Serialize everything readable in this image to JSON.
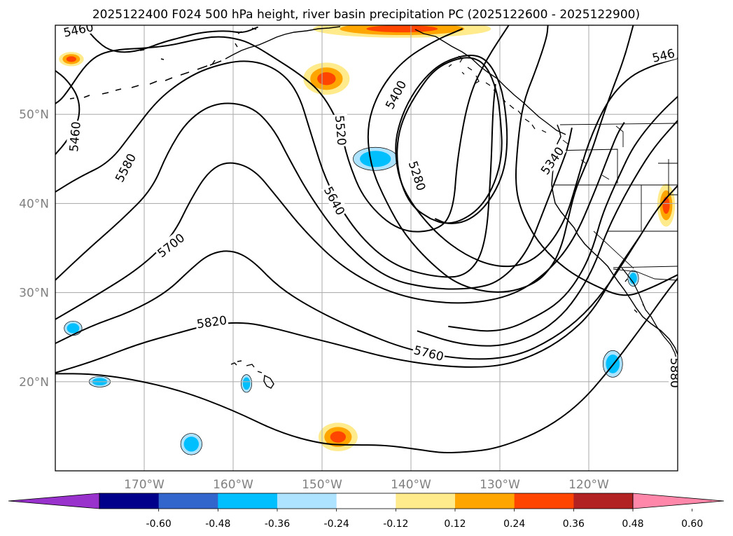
{
  "title": "2025122400 F024 500 hPa height, river basin precipitation PC (2025122600 - 2025122900)",
  "colors": {
    "grid": "#b0b0b0",
    "contour": "#000000",
    "coast": "#000000",
    "tick_label": "#808080"
  },
  "map": {
    "lon_range": [
      -180,
      -110
    ],
    "lat_range": [
      10,
      60
    ],
    "lon_ticks": [
      {
        "value": -170,
        "label": "170°W"
      },
      {
        "value": -160,
        "label": "160°W"
      },
      {
        "value": -150,
        "label": "150°W"
      },
      {
        "value": -140,
        "label": "140°W"
      },
      {
        "value": -130,
        "label": "130°W"
      },
      {
        "value": -120,
        "label": "120°W"
      }
    ],
    "lat_ticks": [
      {
        "value": 20,
        "label": "20°N"
      },
      {
        "value": 30,
        "label": "30°N"
      },
      {
        "value": 40,
        "label": "40°N"
      },
      {
        "value": 50,
        "label": "50°N"
      }
    ],
    "contour_labels": [
      {
        "text": "5460",
        "lon": -177.4,
        "lat": 59.5,
        "angle": -12
      },
      {
        "text": "5460",
        "lon": -177.8,
        "lat": 47.5,
        "angle": -85
      },
      {
        "text": "5580",
        "lon": -177.8,
        "lat": 42.0,
        "angle": 0,
        "hidden": true
      },
      {
        "text": "5580",
        "lon": -172.1,
        "lat": 44.0,
        "angle": -62
      },
      {
        "text": "5700",
        "lon": -167.0,
        "lat": 35.3,
        "angle": -38
      },
      {
        "text": "5820",
        "lon": -162.4,
        "lat": 26.7,
        "angle": -8
      },
      {
        "text": "5760",
        "lon": -138.0,
        "lat": 23.2,
        "angle": 14
      },
      {
        "text": "5640",
        "lon": -148.6,
        "lat": 40.3,
        "angle": 62
      },
      {
        "text": "5520",
        "lon": -147.9,
        "lat": 48.2,
        "angle": 85
      },
      {
        "text": "5400",
        "lon": -141.7,
        "lat": 52.2,
        "angle": -62
      },
      {
        "text": "5280",
        "lon": -139.3,
        "lat": 43.1,
        "angle": 72
      },
      {
        "text": "5340",
        "lon": -124.1,
        "lat": 44.8,
        "angle": -55
      },
      {
        "text": "546",
        "lon": -111.6,
        "lat": 56.6,
        "angle": -14
      },
      {
        "text": "5880",
        "lon": -110.3,
        "lat": 21.0,
        "angle": 90
      }
    ]
  },
  "contours": [
    {
      "level": 5460,
      "points": [
        [
          -176.7,
          59.8
        ],
        [
          -176.5,
          59.6
        ],
        [
          -175.4,
          58.3
        ],
        [
          -174.0,
          57.2
        ],
        [
          -172.1,
          56.9
        ],
        [
          -170.0,
          57.3
        ],
        [
          -167.9,
          58.1
        ],
        [
          -165.6,
          58.7
        ],
        [
          -163.6,
          59.2
        ],
        [
          -160.8,
          59.4
        ],
        [
          -158.9,
          59.1
        ],
        [
          -157.2,
          59.8
        ]
      ]
    },
    {
      "level": 5460,
      "points": [
        [
          -180,
          45.5
        ],
        [
          -178.7,
          47.0
        ],
        [
          -177.3,
          49.3
        ],
        [
          -177.3,
          51.8
        ],
        [
          -178.7,
          53.9
        ],
        [
          -180,
          54.9
        ]
      ]
    },
    {
      "level": 5520,
      "points": [
        [
          -180,
          51.2
        ],
        [
          -179.3,
          51.7
        ],
        [
          -178.4,
          52.9
        ],
        [
          -177.4,
          54.4
        ],
        [
          -176.4,
          55.7
        ],
        [
          -175.0,
          56.8
        ],
        [
          -172.8,
          57.3
        ],
        [
          -170.4,
          57.4
        ],
        [
          -167.2,
          57.7
        ],
        [
          -164.6,
          58.3
        ],
        [
          -161.8,
          58.8
        ],
        [
          -159.1,
          58.4
        ],
        [
          -157.4,
          57.6
        ],
        [
          -155.3,
          56.3
        ],
        [
          -152.5,
          54.5
        ],
        [
          -150.0,
          52.4
        ],
        [
          -148.0,
          48.8
        ],
        [
          -147.1,
          44.8
        ],
        [
          -145.2,
          40.2
        ],
        [
          -141.2,
          36.7
        ],
        [
          -136.7,
          37.0
        ],
        [
          -135.2,
          39.4
        ],
        [
          -134.8,
          45.0
        ],
        [
          -133.5,
          52.1
        ],
        [
          -131.5,
          56.2
        ],
        [
          -129.0,
          60.0
        ]
      ]
    },
    {
      "level": 5580,
      "points": [
        [
          -180,
          41.3
        ],
        [
          -177.4,
          42.9
        ],
        [
          -173.9,
          44.6
        ],
        [
          -171.3,
          48.0
        ],
        [
          -168.6,
          51.5
        ],
        [
          -165.7,
          53.8
        ],
        [
          -162.7,
          55.3
        ],
        [
          -158.6,
          56.2
        ],
        [
          -155.1,
          55.2
        ],
        [
          -152.7,
          52.6
        ],
        [
          -151.3,
          48.0
        ],
        [
          -149.4,
          42.0
        ],
        [
          -146.1,
          36.6
        ],
        [
          -142.0,
          33.0
        ],
        [
          -137.2,
          31.7
        ],
        [
          -133.7,
          31.8
        ],
        [
          -131.6,
          35.0
        ],
        [
          -131.0,
          43.6
        ],
        [
          -130.8,
          50.2
        ],
        [
          -130.5,
          53.4
        ]
      ]
    },
    {
      "level": 5640,
      "points": [
        [
          -180,
          31.4
        ],
        [
          -176.5,
          34.7
        ],
        [
          -172.5,
          38.2
        ],
        [
          -169.1,
          41.6
        ],
        [
          -167.4,
          45.7
        ],
        [
          -165.1,
          49.4
        ],
        [
          -161.9,
          51.4
        ],
        [
          -158.0,
          51.0
        ],
        [
          -155.5,
          48.5
        ],
        [
          -153.7,
          45.0
        ],
        [
          -151.4,
          40.9
        ],
        [
          -147.9,
          36.0
        ],
        [
          -143.0,
          31.6
        ],
        [
          -137.6,
          30.4
        ],
        [
          -133.1,
          30.4
        ],
        [
          -130.0,
          31.2
        ],
        [
          -126.9,
          34.5
        ],
        [
          -125.0,
          39.4
        ],
        [
          -123.2,
          44.0
        ],
        [
          -122.4,
          46.1
        ],
        [
          -121.9,
          48.5
        ]
      ]
    },
    {
      "level": 5700,
      "points": [
        [
          -180,
          27.0
        ],
        [
          -175.7,
          29.5
        ],
        [
          -170.4,
          32.8
        ],
        [
          -166.8,
          36.3
        ],
        [
          -164.8,
          40.4
        ],
        [
          -162.8,
          43.6
        ],
        [
          -160.6,
          44.8
        ],
        [
          -157.7,
          43.9
        ],
        [
          -155.2,
          40.9
        ],
        [
          -152.0,
          36.9
        ],
        [
          -147.5,
          32.6
        ],
        [
          -141.6,
          29.6
        ],
        [
          -134.8,
          28.6
        ],
        [
          -128.8,
          29.5
        ],
        [
          -124.8,
          32.1
        ],
        [
          -121.7,
          35.8
        ],
        [
          -119.3,
          41.4
        ],
        [
          -117.8,
          45.3
        ],
        [
          -116.8,
          47.8
        ],
        [
          -116.0,
          49.1
        ]
      ]
    },
    {
      "level": 5760,
      "points": [
        [
          -180,
          24.3
        ],
        [
          -175.9,
          26.3
        ],
        [
          -171.6,
          27.8
        ],
        [
          -167.5,
          30.0
        ],
        [
          -164.7,
          32.7
        ],
        [
          -162.6,
          34.4
        ],
        [
          -160.2,
          34.8
        ],
        [
          -157.9,
          33.7
        ],
        [
          -155.0,
          30.7
        ],
        [
          -151.4,
          28.4
        ],
        [
          -146.3,
          25.9
        ],
        [
          -140.2,
          23.5
        ],
        [
          -133.5,
          22.4
        ],
        [
          -128.2,
          22.8
        ],
        [
          -124.0,
          24.8
        ],
        [
          -120.5,
          27.5
        ],
        [
          -117.5,
          31.2
        ],
        [
          -114.2,
          36.4
        ],
        [
          -112.2,
          39.6
        ],
        [
          -110,
          42.0
        ]
      ]
    },
    {
      "level": 5820,
      "points": [
        [
          -180,
          21.0
        ],
        [
          -175.7,
          22.3
        ],
        [
          -170.8,
          24.2
        ],
        [
          -166.1,
          25.5
        ],
        [
          -162.8,
          26.4
        ],
        [
          -158.8,
          26.7
        ],
        [
          -155.3,
          26.0
        ],
        [
          -152.0,
          25.1
        ],
        [
          -148.3,
          24.2
        ],
        [
          -142.0,
          22.5
        ],
        [
          -135.4,
          21.6
        ],
        [
          -130.0,
          21.7
        ],
        [
          -126.0,
          23.0
        ],
        [
          -122.6,
          25.0
        ],
        [
          -119.6,
          27.8
        ],
        [
          -116.8,
          32.6
        ],
        [
          -114.2,
          36.4
        ]
      ]
    },
    {
      "level": 5880,
      "points": [
        [
          -180,
          20.9
        ],
        [
          -176.0,
          20.9
        ],
        [
          -171.4,
          20.3
        ],
        [
          -165.8,
          19.0
        ],
        [
          -160.0,
          16.8
        ],
        [
          -154.8,
          14.3
        ],
        [
          -150.0,
          13.0
        ],
        [
          -146.7,
          12.9
        ],
        [
          -143.0,
          12.9
        ],
        [
          -139.2,
          12.4
        ],
        [
          -136.5,
          12.0
        ],
        [
          -133.8,
          12.1
        ],
        [
          -130.3,
          12.5
        ],
        [
          -125.2,
          14.5
        ],
        [
          -121.1,
          17.4
        ],
        [
          -117.7,
          21.3
        ],
        [
          -114.0,
          26.2
        ],
        [
          -111.2,
          30.1
        ],
        [
          -110,
          31.6
        ]
      ]
    },
    {
      "level": 5340,
      "points": [
        [
          -115.0,
          60.0
        ],
        [
          -116.0,
          56.3
        ],
        [
          -117.5,
          52.4
        ],
        [
          -118.7,
          48.9
        ],
        [
          -119.7,
          45.8
        ],
        [
          -120.6,
          43.7
        ],
        [
          -121.6,
          41.3
        ],
        [
          -122.4,
          37.9
        ],
        [
          -123.0,
          35.4
        ],
        [
          -124.0,
          33.1
        ],
        [
          -125.9,
          31.0
        ],
        [
          -129.8,
          29.8
        ],
        [
          -134.5,
          30.7
        ],
        [
          -137.8,
          33.3
        ],
        [
          -140.7,
          36.5
        ],
        [
          -142.7,
          40.0
        ],
        [
          -144.5,
          44.0
        ],
        [
          -145.0,
          48.5
        ],
        [
          -143.7,
          52.5
        ],
        [
          -141.0,
          56.0
        ],
        [
          -137.3,
          58.3
        ],
        [
          -134.2,
          59.6
        ]
      ]
    },
    {
      "level": 5460,
      "points": [
        [
          -110.0,
          56.3
        ],
        [
          -113.1,
          55.4
        ],
        [
          -115.6,
          54.1
        ],
        [
          -118.0,
          51.4
        ],
        [
          -120.1,
          46.7
        ],
        [
          -121.3,
          42.5
        ],
        [
          -122.6,
          38.2
        ],
        [
          -124.8,
          34.8
        ],
        [
          -127.4,
          33.0
        ],
        [
          -130.6,
          32.9
        ],
        [
          -133.9,
          34.2
        ],
        [
          -137.0,
          36.5
        ],
        [
          -139.6,
          39.5
        ],
        [
          -141.3,
          42.5
        ],
        [
          -141.8,
          45.9
        ],
        [
          -141.5,
          48.4
        ],
        [
          -140.4,
          51.3
        ],
        [
          -138.6,
          54.0
        ],
        [
          -136.4,
          55.9
        ],
        [
          -133.4,
          56.8
        ],
        [
          -131.5,
          56.2
        ],
        [
          -130.1,
          53.9
        ],
        [
          -129.4,
          50.9
        ],
        [
          -129.1,
          46.9
        ],
        [
          -129.6,
          43.2
        ],
        [
          -131.3,
          40.0
        ],
        [
          -133.4,
          38.1
        ],
        [
          -135.7,
          37.6
        ],
        [
          -137.3,
          38.3
        ]
      ]
    },
    {
      "level": 5280,
      "points": [
        [
          -137.8,
          38.3
        ],
        [
          -139.6,
          39.4
        ],
        [
          -140.9,
          41.5
        ],
        [
          -141.6,
          44.5
        ],
        [
          -141.5,
          47.4
        ],
        [
          -140.7,
          50.0
        ],
        [
          -139.2,
          52.6
        ],
        [
          -137.5,
          54.9
        ],
        [
          -135.4,
          56.1
        ],
        [
          -133.2,
          56.5
        ],
        [
          -131.5,
          55.5
        ],
        [
          -130.3,
          52.6
        ],
        [
          -129.9,
          49.3
        ],
        [
          -129.7,
          45.6
        ],
        [
          -130.6,
          42.1
        ],
        [
          -132.2,
          39.5
        ],
        [
          -134.4,
          38.0
        ],
        [
          -136.3,
          37.7
        ],
        [
          -137.8,
          38.3
        ]
      ]
    },
    {
      "level": 5880,
      "points": [
        [
          -110,
          32.0
        ],
        [
          -113.0,
          30.5
        ],
        [
          -116.0,
          29.4
        ],
        [
          -119.4,
          30.8
        ],
        [
          -122.5,
          32.5
        ],
        [
          -125.5,
          35.3
        ],
        [
          -127.5,
          38.8
        ],
        [
          -128.3,
          42.0
        ],
        [
          -128.0,
          46.8
        ],
        [
          -127.4,
          51.3
        ],
        [
          -125.9,
          55.1
        ],
        [
          -124.7,
          58.7
        ],
        [
          -124.6,
          60.0
        ]
      ]
    },
    {
      "level": 5400,
      "points": [
        [
          -110.0,
          52.0
        ],
        [
          -111.9,
          50.2
        ],
        [
          -113.8,
          48.0
        ],
        [
          -115.2,
          46.0
        ],
        [
          -116.3,
          43.7
        ],
        [
          -117.5,
          41.1
        ],
        [
          -118.6,
          38.4
        ],
        [
          -119.5,
          35.1
        ],
        [
          -120.8,
          32.2
        ],
        [
          -122.7,
          29.5
        ],
        [
          -125.1,
          27.7
        ],
        [
          -130.0,
          25.4
        ],
        [
          -135.8,
          26.2
        ]
      ]
    },
    {
      "level": 5520,
      "points": [
        [
          -110.0,
          49.3
        ],
        [
          -112.6,
          46.4
        ],
        [
          -114.6,
          43.3
        ],
        [
          -116.6,
          39.7
        ],
        [
          -118.2,
          36.3
        ],
        [
          -119.3,
          33.2
        ],
        [
          -120.9,
          30.2
        ],
        [
          -123.0,
          27.4
        ],
        [
          -126.0,
          25.2
        ],
        [
          -130.0,
          23.9
        ],
        [
          -134.7,
          24.2
        ],
        [
          -139.3,
          25.7
        ]
      ]
    }
  ],
  "precip": [
    {
      "sign": "neg",
      "lon": -144.0,
      "lat": 45.0,
      "rx": 2.5,
      "ry": 1.3
    },
    {
      "sign": "neg",
      "lon": -178.0,
      "lat": 26.0,
      "rx": 1.0,
      "ry": 0.8
    },
    {
      "sign": "neg",
      "lon": -175.0,
      "lat": 20.0,
      "rx": 1.2,
      "ry": 0.6
    },
    {
      "sign": "neg",
      "lon": -158.5,
      "lat": 19.8,
      "rx": 0.6,
      "ry": 1.0
    },
    {
      "sign": "neg",
      "lon": -164.7,
      "lat": 13.0,
      "rx": 1.2,
      "ry": 1.2
    },
    {
      "sign": "neg",
      "lon": -117.3,
      "lat": 22.0,
      "rx": 1.1,
      "ry": 1.5
    },
    {
      "sign": "neg",
      "lon": -115.0,
      "lat": 31.6,
      "rx": 0.6,
      "ry": 0.9
    },
    {
      "sign": "pos",
      "lon": -149.5,
      "lat": 54.0,
      "rx": 2.6,
      "ry": 1.8
    },
    {
      "sign": "pos",
      "lon": -148.2,
      "lat": 13.8,
      "rx": 2.2,
      "ry": 1.6
    },
    {
      "sign": "pos",
      "lon": -141.0,
      "lat": 59.6,
      "rx": 10.0,
      "ry": 1.0
    },
    {
      "sign": "pos",
      "lon": -111.3,
      "lat": 39.8,
      "rx": 1.0,
      "ry": 2.4
    },
    {
      "sign": "pos",
      "lon": -178.2,
      "lat": 56.2,
      "rx": 1.4,
      "ry": 0.8
    }
  ],
  "colorbar": {
    "colors": [
      "#9932CC",
      "#00008B",
      "#3366CC",
      "#00BFFF",
      "#AEE3FF",
      "#FFFFFF",
      "#FFEA8C",
      "#FFA500",
      "#FF4500",
      "#B22222",
      "#FF88AA"
    ],
    "ticks": [
      "-0.60",
      "-0.48",
      "-0.36",
      "-0.24",
      "-0.12",
      "0.12",
      "0.24",
      "0.36",
      "0.48",
      "0.60"
    ]
  }
}
